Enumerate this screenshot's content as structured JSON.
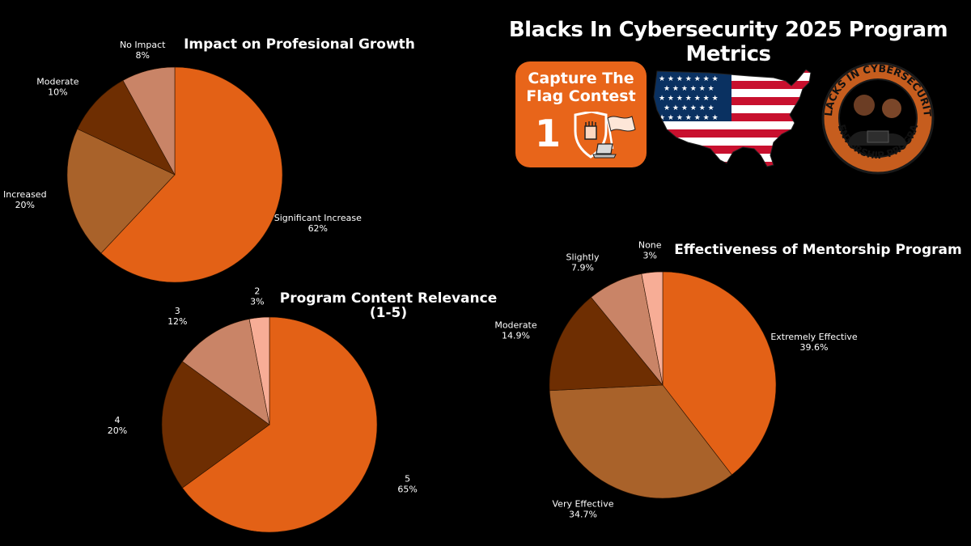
{
  "header": {
    "title": "Blacks In Cybersecurity 2025 Program Metrics"
  },
  "logos": {
    "ctf": {
      "line1": "Capture The",
      "line2": "Flag Contest",
      "number": "1",
      "icon": "shield-fist-flag-laptop-icon"
    },
    "map": {
      "icon": "usa-flag-map-icon"
    },
    "seal": {
      "icon": "mentorship-program-seal-icon",
      "top_text": "BLACKS IN CYBERSECURITY",
      "bottom_text": "MENTORSHIP PROGRAM"
    }
  },
  "colors": {
    "dark_orange": "#e36116",
    "brown": "#a9622a",
    "dark_brown": "#6e2e02",
    "salmon": "#c98467",
    "peach": "#f7ad96",
    "background": "#000000"
  },
  "chart_data": [
    {
      "id": "growth",
      "type": "pie",
      "title": "Impact on Profesional Growth",
      "slices": [
        {
          "label": "Significant Increase",
          "value": 62,
          "display": "62%",
          "color": "#e36116"
        },
        {
          "label": "Increased",
          "value": 20,
          "display": "20%",
          "color": "#a9622a"
        },
        {
          "label": "Moderate",
          "value": 10,
          "display": "10%",
          "color": "#6e2e02"
        },
        {
          "label": "No Impact",
          "value": 8,
          "display": "8%",
          "color": "#c98467"
        }
      ]
    },
    {
      "id": "relevance",
      "type": "pie",
      "title": "Program  Content Relevance",
      "subtitle": "(1-5)",
      "slices": [
        {
          "label": "5",
          "value": 65,
          "display": "65%",
          "color": "#e36116"
        },
        {
          "label": "4",
          "value": 20,
          "display": "20%",
          "color": "#6e2e02"
        },
        {
          "label": "3",
          "value": 12,
          "display": "12%",
          "color": "#c98467"
        },
        {
          "label": "2",
          "value": 3,
          "display": "3%",
          "color": "#f7ad96"
        }
      ]
    },
    {
      "id": "effectiveness",
      "type": "pie",
      "title": "Effectiveness of Mentorship Program",
      "slices": [
        {
          "label": "Extremely Effective",
          "value": 39.6,
          "display": "39.6%",
          "color": "#e36116"
        },
        {
          "label": "Very Effective",
          "value": 34.7,
          "display": "34.7%",
          "color": "#a9622a"
        },
        {
          "label": "Moderate",
          "value": 14.9,
          "display": "14.9%",
          "color": "#6e2e02"
        },
        {
          "label": "Slightly",
          "value": 7.9,
          "display": "7.9%",
          "color": "#c98467"
        },
        {
          "label": "None",
          "value": 3,
          "display": "3%",
          "color": "#f7ad96"
        }
      ]
    }
  ]
}
